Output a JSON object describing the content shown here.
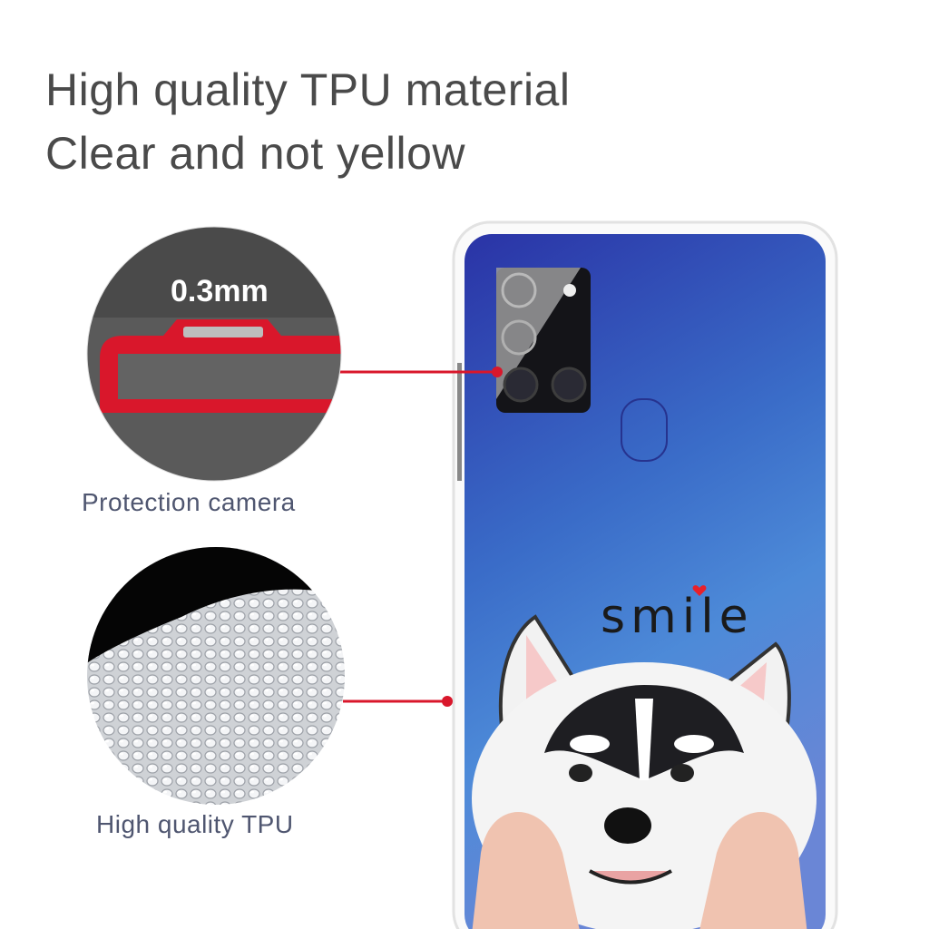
{
  "headline": {
    "line1": "High quality TPU material",
    "line2": "Clear and not yellow"
  },
  "callouts": [
    {
      "label": "Protection camera",
      "measurement": "0.3mm"
    },
    {
      "label": "High quality TPU"
    }
  ],
  "case_print": {
    "text": "smile",
    "accent_color": "#e8202a"
  },
  "colors": {
    "callout_line": "#d9172b",
    "phone_blue": "#2f3fb0",
    "text_gray": "#4a4a4a"
  }
}
